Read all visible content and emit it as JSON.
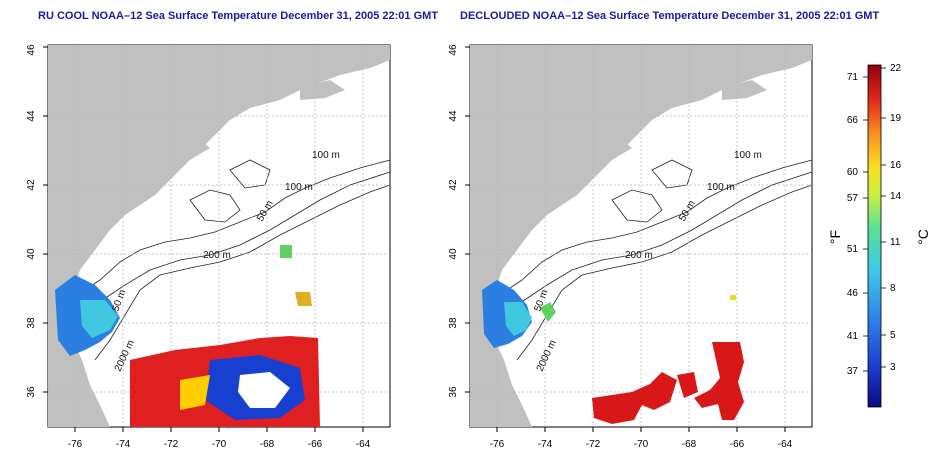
{
  "panels": [
    {
      "id": "left",
      "title": "RU COOL NOAA–12 Sea Surface Temperature December 31, 2005 22:01 GMT",
      "contour_labels": [
        "100 m",
        "100 m",
        "50 m",
        "200 m",
        "50 m",
        "2000 m"
      ],
      "x_ticks": [
        "-76",
        "-74",
        "-72",
        "-70",
        "-68",
        "-66",
        "-64"
      ],
      "y_ticks": [
        "36",
        "38",
        "40",
        "42",
        "44",
        "46"
      ]
    },
    {
      "id": "right",
      "title": "DECLOUDED NOAA–12 Sea Surface Temperature December 31, 2005 22:01 GMT",
      "contour_labels": [
        "100 m",
        "100 m",
        "50 m",
        "200 m",
        "50 m",
        "2000 m"
      ],
      "x_ticks": [
        "-76",
        "-74",
        "-72",
        "-70",
        "-68",
        "-66",
        "-64"
      ],
      "y_ticks": [
        "36",
        "38",
        "40",
        "42",
        "44",
        "46"
      ]
    }
  ],
  "colorbar": {
    "f_label": "°F",
    "c_label": "°C",
    "f_ticks": [
      "71",
      "66",
      "60",
      "57",
      "51",
      "46",
      "41",
      "37"
    ],
    "c_ticks": [
      "22",
      "19",
      "16",
      "14",
      "11",
      "8",
      "5",
      "3"
    ]
  },
  "colors": {
    "land": "#c0c0c0",
    "ocean": "#ffffff",
    "grid": "#b4b4b4",
    "title": "#1a1aa0",
    "contour": "#222222"
  }
}
